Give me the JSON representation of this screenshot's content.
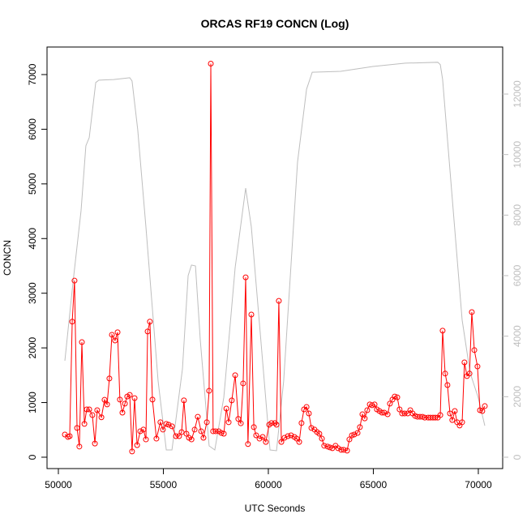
{
  "chart_data": {
    "type": "line",
    "title": "ORCAS RF19 CONCN (Log)",
    "x_label": "UTC Seconds",
    "y_label": "CONCN",
    "xlim": [
      49460,
      71160
    ],
    "ylim": [
      -208,
      7504
    ],
    "y2lim": [
      -375,
      13554
    ],
    "xticks": [
      50000,
      55000,
      60000,
      65000,
      70000
    ],
    "yticks": [
      0,
      1000,
      2000,
      3000,
      4000,
      5000,
      6000,
      7000
    ],
    "y2ticks": [
      0,
      2000,
      4000,
      6000,
      8000,
      10000,
      12000
    ],
    "series": [
      {
        "color": "#ff0000",
        "marker": "circle",
        "x": [
          50310,
          50460,
          50540,
          50660,
          50770,
          50890,
          51000,
          51120,
          51240,
          51350,
          51470,
          51620,
          51740,
          51850,
          52050,
          52200,
          52320,
          52430,
          52550,
          52700,
          52820,
          52930,
          53050,
          53170,
          53280,
          53400,
          53510,
          53630,
          53750,
          53900,
          54050,
          54170,
          54250,
          54360,
          54480,
          54670,
          54860,
          54980,
          55140,
          55250,
          55410,
          55600,
          55750,
          55870,
          55980,
          56100,
          56220,
          56340,
          56490,
          56640,
          56800,
          56910,
          57070,
          57180,
          57260,
          57370,
          57490,
          57640,
          57760,
          57880,
          58000,
          58110,
          58260,
          58420,
          58570,
          58690,
          58800,
          58920,
          59030,
          59190,
          59310,
          59420,
          59580,
          59730,
          59880,
          60040,
          60150,
          60310,
          60390,
          60500,
          60620,
          60770,
          60930,
          61080,
          61240,
          61350,
          61470,
          61580,
          61700,
          61820,
          61930,
          62050,
          62200,
          62320,
          62430,
          62550,
          62660,
          62820,
          62930,
          63050,
          63200,
          63320,
          63470,
          63590,
          63750,
          63860,
          63980,
          64090,
          64250,
          64360,
          64480,
          64590,
          64710,
          64830,
          64940,
          65060,
          65170,
          65290,
          65410,
          65520,
          65680,
          65790,
          65910,
          66020,
          66140,
          66250,
          66370,
          66490,
          66640,
          66760,
          66870,
          66990,
          67100,
          67220,
          67340,
          67450,
          67610,
          67720,
          67840,
          67950,
          68070,
          68190,
          68300,
          68420,
          68530,
          68650,
          68760,
          68880,
          68990,
          69110,
          69230,
          69340,
          69460,
          69580,
          69690,
          69810,
          69960,
          70080,
          70190,
          70310
        ],
        "values": [
          415,
          370,
          385,
          2480,
          3230,
          535,
          195,
          2105,
          610,
          875,
          875,
          770,
          250,
          860,
          730,
          1050,
          965,
          1440,
          2240,
          2135,
          2285,
          1055,
          815,
          980,
          1110,
          1140,
          105,
          1080,
          220,
          475,
          505,
          325,
          2300,
          2480,
          1055,
          340,
          640,
          505,
          610,
          595,
          565,
          385,
          385,
          460,
          1040,
          430,
          355,
          325,
          505,
          740,
          475,
          355,
          640,
          1215,
          7200,
          475,
          475,
          475,
          445,
          430,
          890,
          640,
          1040,
          1500,
          700,
          620,
          1350,
          3290,
          240,
          2610,
          550,
          400,
          340,
          370,
          280,
          595,
          625,
          625,
          595,
          2860,
          280,
          355,
          385,
          400,
          370,
          340,
          280,
          625,
          875,
          920,
          800,
          535,
          505,
          460,
          430,
          340,
          210,
          195,
          180,
          165,
          210,
          165,
          135,
          135,
          120,
          325,
          400,
          415,
          445,
          550,
          785,
          710,
          860,
          965,
          950,
          965,
          875,
          845,
          815,
          815,
          785,
          980,
          1055,
          1110,
          1095,
          875,
          800,
          800,
          800,
          860,
          800,
          755,
          740,
          740,
          740,
          725,
          725,
          725,
          725,
          725,
          725,
          770,
          2315,
          1530,
          1320,
          800,
          680,
          845,
          640,
          580,
          640,
          1735,
          1485,
          1530,
          2655,
          1960,
          1660,
          860,
          845,
          935
        ]
      },
      {
        "color": "#bebebe",
        "axis": "y2",
        "x": [
          50310,
          50690,
          51080,
          51310,
          51470,
          51780,
          51930,
          52630,
          53400,
          53510,
          53780,
          54170,
          54750,
          55140,
          55410,
          55910,
          56180,
          56340,
          56530,
          56760,
          57180,
          57450,
          57880,
          58420,
          58920,
          59190,
          59580,
          60080,
          60390,
          60730,
          61390,
          61820,
          62090,
          63440,
          64980,
          66530,
          68070,
          68190,
          68300,
          68650,
          69230,
          69610,
          69990,
          70310
        ],
        "values": [
          3190,
          5730,
          8140,
          10290,
          10560,
          12380,
          12460,
          12480,
          12540,
          12430,
          10820,
          7610,
          2520,
          240,
          240,
          2920,
          6000,
          6350,
          6320,
          3860,
          375,
          240,
          1980,
          6270,
          8890,
          7610,
          4390,
          240,
          215,
          2520,
          9750,
          12160,
          12720,
          12750,
          12910,
          13020,
          13050,
          12970,
          12480,
          9480,
          4530,
          2790,
          1980,
          1040
        ]
      }
    ]
  }
}
